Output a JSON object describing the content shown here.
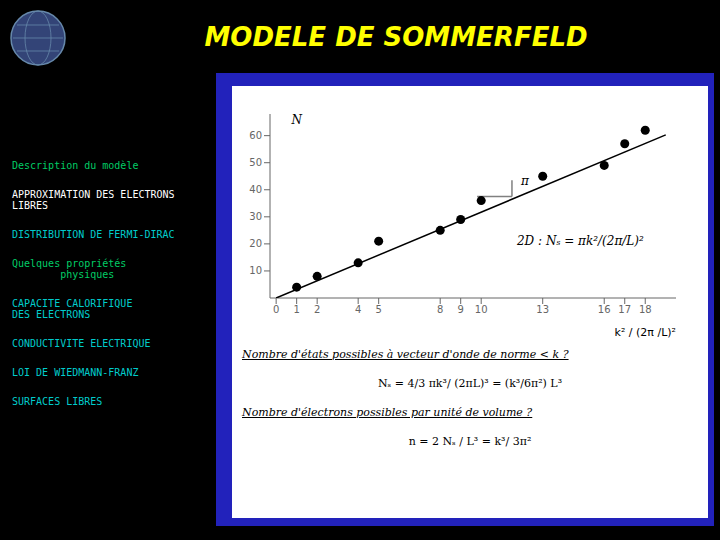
{
  "chart_data": {
    "type": "scatter",
    "title": "MODELE DE SOMMERFELD",
    "title_color": "#FFFF00",
    "xlabel": "k² / (2π /L)²",
    "series": [
      {
        "type": "scatter",
        "color": "#000000",
        "x": [
          1,
          2,
          4,
          5,
          8,
          9,
          10,
          13,
          16,
          17,
          18
        ],
        "values": [
          4,
          8,
          13,
          21,
          25,
          29,
          36,
          45,
          49,
          57,
          62
        ]
      },
      {
        "type": "line",
        "color": "#000000",
        "x": [
          0,
          19
        ],
        "values": [
          0,
          60.3
        ]
      }
    ],
    "xlim": [
      -0.3,
      19.5
    ],
    "xticks": [
      0,
      1,
      2,
      4,
      5,
      8,
      9,
      10,
      13,
      16,
      17,
      18
    ],
    "ylim": [
      0,
      68
    ],
    "yticks": [
      10,
      20,
      30,
      40,
      50,
      60
    ],
    "grid": false,
    "annotations": [
      {
        "text": "N",
        "x": 0.5,
        "y": 66
      },
      {
        "text": "π",
        "x": 11.7,
        "y": 43.5
      },
      {
        "text": "2D : Nₛ = πk²/(2π/L)²",
        "x": 11.5,
        "y": 21
      }
    ],
    "lines": [
      {
        "x": [
          9.8,
          11.5
        ],
        "y": [
          37.5,
          37.5
        ],
        "color": "#808080"
      },
      {
        "x": [
          11.5,
          11.5
        ],
        "y": [
          37.5,
          43.5
        ],
        "color": "#808080"
      }
    ],
    "notes": [
      "Nombre d'états possibles à vecteur d'onde de norme < k ?",
      "Nₛ = 4/3 πk³/ (2πL)³ = (k³/6π²) L³",
      "Nombre d'électrons possibles par unité de volume ?",
      "n = 2 Nₛ / L³ = k³/ 3π²"
    ],
    "menu": [
      {
        "text": "Description du modèle",
        "color": "#00CC66"
      },
      {
        "text": "APPROXIMATION DES ELECTRONS\nLIBRES",
        "color": "#FFFFFF"
      },
      {
        "text": "DISTRIBUTION DE FERMI-DIRAC",
        "color": "#00CCCC"
      },
      {
        "text": "Quelques propriétés\n        physiques",
        "color": "#00CC66"
      },
      {
        "text": "CAPACITE CALORIFIQUE\nDES ELECTRONS",
        "color": "#00CCCC"
      },
      {
        "text": "CONDUCTIVITE ELECTRIQUE",
        "color": "#00CCCC"
      },
      {
        "text": "LOI DE WIEDMANN-FRANZ",
        "color": "#00CCCC"
      },
      {
        "text": "SURFACES LIBRES",
        "color": "#00CCCC"
      }
    ]
  }
}
